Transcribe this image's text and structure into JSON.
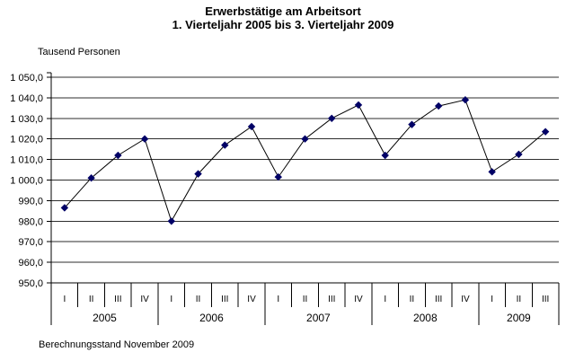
{
  "chart_data": {
    "type": "line",
    "title": "Erwerbstätige am Arbeitsort",
    "subtitle": "1. Vierteljahr 2005 bis 3. Vierteljahr 2009",
    "ylabel": "Tausend Personen",
    "footnote": "Berechnungsstand November 2009",
    "ylim": [
      950,
      1050
    ],
    "ytick_step": 10,
    "ytick_labels": [
      "1 050,0",
      "1 040,0",
      "1 030,0",
      "1 020,0",
      "1 010,0",
      "1 000,0",
      "990,0",
      "980,0",
      "970,0",
      "960,0",
      "950,0"
    ],
    "grid": true,
    "legend": "none",
    "marker": "diamond",
    "colors": {
      "marker": "#000066",
      "line": "#000000",
      "grid": "#2e2e2e",
      "axis": "#000000",
      "background": "#ffffff"
    },
    "groups": [
      {
        "year": "2005",
        "quarters": [
          "I",
          "II",
          "III",
          "IV"
        ],
        "values": [
          986.5,
          1001,
          1012,
          1020
        ]
      },
      {
        "year": "2006",
        "quarters": [
          "I",
          "II",
          "III",
          "IV"
        ],
        "values": [
          980,
          1003,
          1017,
          1026
        ]
      },
      {
        "year": "2007",
        "quarters": [
          "I",
          "II",
          "III",
          "IV"
        ],
        "values": [
          1001.5,
          1020,
          1030,
          1036.5
        ]
      },
      {
        "year": "2008",
        "quarters": [
          "I",
          "II",
          "III",
          "IV"
        ],
        "values": [
          1012,
          1027,
          1036,
          1039
        ]
      },
      {
        "year": "2009",
        "quarters": [
          "I",
          "II",
          "III"
        ],
        "values": [
          1004,
          1012.5,
          1023.5
        ]
      }
    ]
  }
}
